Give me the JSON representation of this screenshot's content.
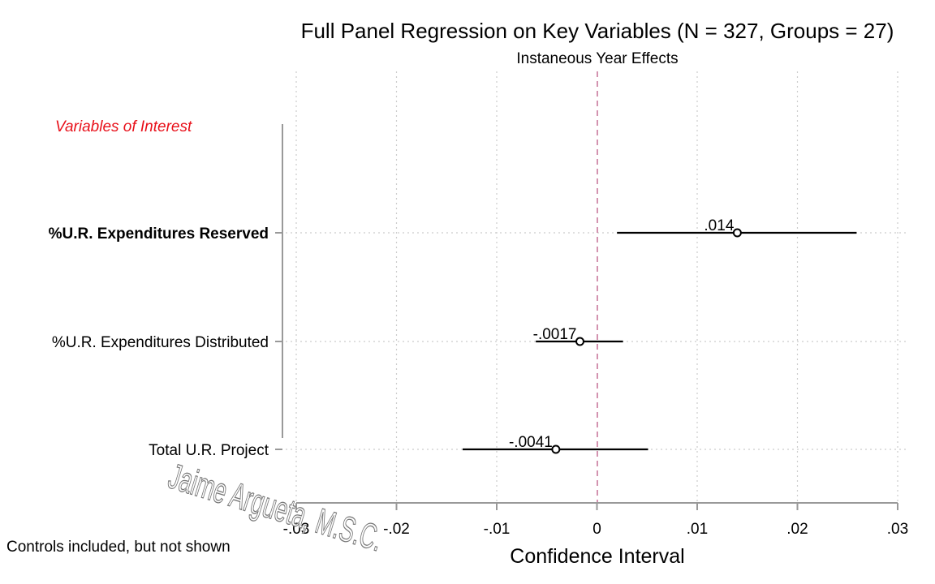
{
  "chart_data": {
    "type": "scatter",
    "title": "Full Panel Regression on Key Variables (N = 327, Groups = 27)",
    "subtitle": "Instaneous Year Effects",
    "xlabel": "Confidence Interval",
    "xlim": [
      -0.03,
      0.03
    ],
    "x_ticks": [
      -0.03,
      -0.02,
      -0.01,
      0,
      0.01,
      0.02,
      0.03
    ],
    "x_tick_labels": [
      "-.03",
      "-.02",
      "-.01",
      "0",
      ".01",
      ".02",
      ".03"
    ],
    "reference_line": 0,
    "grid": true,
    "section_label": "Variables of Interest",
    "series": [
      {
        "category": "%U.R. Expenditures Reserved",
        "bold": true,
        "estimate": 0.014,
        "ci_low": 0.002,
        "ci_high": 0.0259,
        "label": ".014"
      },
      {
        "category": "%U.R. Expenditures Distributed",
        "bold": false,
        "estimate": -0.0017,
        "ci_low": -0.0061,
        "ci_high": 0.0026,
        "label": "-.0017"
      },
      {
        "category": "Total U.R. Project",
        "bold": false,
        "estimate": -0.0041,
        "ci_low": -0.0134,
        "ci_high": 0.0051,
        "label": "-.0041"
      }
    ],
    "note": "Controls included, but not shown",
    "watermark": "Jaime Argueta, M.S.C.",
    "colors": {
      "reference_line": "#c8789c",
      "section_label": "#e8101a",
      "markers": "#000000",
      "grid": "#cccccc"
    }
  }
}
